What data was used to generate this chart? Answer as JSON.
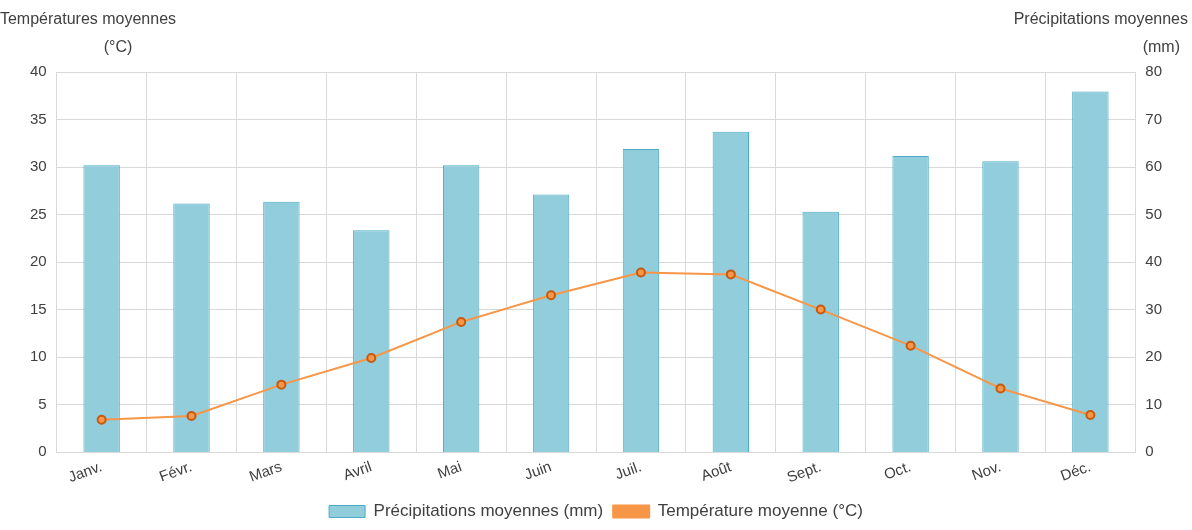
{
  "chart_data": {
    "type": "bar",
    "categories": [
      "Janv.",
      "Févr.",
      "Mars",
      "Avril",
      "Mai",
      "Juin",
      "Juil.",
      "Août",
      "Sept.",
      "Oct.",
      "Nov.",
      "Déc."
    ],
    "ylabel": "Températures moyennes (°C)",
    "y2label": "Précipitations moyennes (mm)",
    "ylim": [
      0,
      40
    ],
    "yticks": [
      0,
      5,
      10,
      15,
      20,
      25,
      30,
      35,
      40
    ],
    "y2lim": [
      0,
      80
    ],
    "y2ticks": [
      0,
      10,
      20,
      30,
      40,
      50,
      60,
      70,
      80
    ],
    "grid": true,
    "legend": "bottom",
    "marker": "circle",
    "series": [
      {
        "name": "Précipitations moyennes (mm)",
        "axis": "y2",
        "color": "#92cddc",
        "values": [
          60.4,
          52.3,
          52.7,
          46.7,
          60.4,
          54.2,
          63.8,
          67.4,
          50.6,
          62.3,
          61.2,
          75.9
        ]
      },
      {
        "name": "Température moyenne (°C)",
        "type": "line",
        "axis": "y",
        "color": "#f79646",
        "values": [
          3.4,
          3.8,
          7.1,
          9.9,
          13.7,
          16.5,
          18.9,
          18.7,
          15.0,
          11.2,
          6.7,
          3.9
        ]
      }
    ]
  }
}
